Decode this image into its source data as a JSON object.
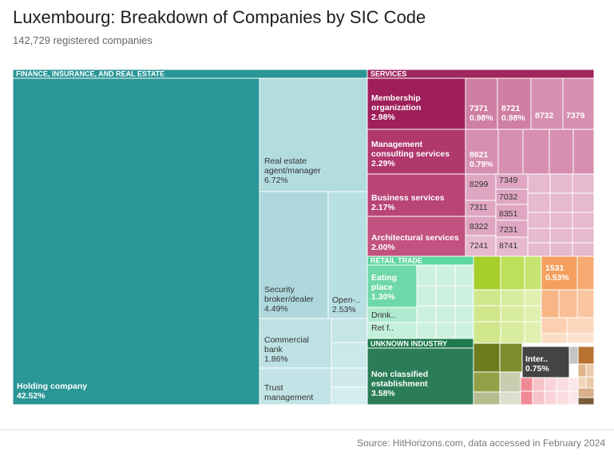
{
  "header": {
    "title": "Luxembourg: Breakdown of Companies by SIC Code",
    "subtitle": "142,729 registered companies"
  },
  "footer": {
    "source": "Source: HitHorizons.com, data accessed in February 2024"
  },
  "chart_data": {
    "type": "treemap",
    "title": "Luxembourg: Breakdown of Companies by SIC Code",
    "subtitle": "142,729 registered companies",
    "sectors": [
      {
        "name": "FINANCE, INSURANCE, AND REAL ESTATE",
        "color": "#2a9696",
        "items": [
          {
            "label": "Holding company",
            "value": "42.52%"
          },
          {
            "label": "Real estate agent/manager",
            "value": "6.72%"
          },
          {
            "label": "Security broker/dealer",
            "value": "4.49%"
          },
          {
            "label": "Open-..",
            "value": "2.53%"
          },
          {
            "label": "Commercial bank",
            "value": "1.86%"
          },
          {
            "label": "Trust management",
            "value": ""
          }
        ]
      },
      {
        "name": "SERVICES",
        "color": "#a0265e",
        "items": [
          {
            "label": "Membership organization",
            "value": "2.98%"
          },
          {
            "label": "Management consulting services",
            "value": "2.29%"
          },
          {
            "label": "Business services",
            "value": "2.17%"
          },
          {
            "label": "Architectural services",
            "value": "2.00%"
          },
          {
            "label": "7371",
            "value": "0.98%"
          },
          {
            "label": "8721",
            "value": "0.98%"
          },
          {
            "label": "8732",
            "value": ""
          },
          {
            "label": "7379",
            "value": ""
          },
          {
            "label": "8621",
            "value": "0.79%"
          },
          {
            "label": "8299",
            "value": ""
          },
          {
            "label": "7349",
            "value": ""
          },
          {
            "label": "7032",
            "value": ""
          },
          {
            "label": "7311",
            "value": ""
          },
          {
            "label": "8351",
            "value": ""
          },
          {
            "label": "8322",
            "value": ""
          },
          {
            "label": "7231",
            "value": ""
          },
          {
            "label": "7241",
            "value": ""
          },
          {
            "label": "8741",
            "value": ""
          }
        ]
      },
      {
        "name": "RETAIL TRADE",
        "color": "#5ed6a0",
        "items": [
          {
            "label": "Eating place",
            "value": "1.30%"
          },
          {
            "label": "Drink..",
            "value": ""
          },
          {
            "label": "Ret f..",
            "value": ""
          }
        ]
      },
      {
        "name": "UNKNOWN INDUSTRY",
        "color": "#1f7a4d",
        "items": [
          {
            "label": "Non classified establishment",
            "value": "3.58%"
          }
        ]
      },
      {
        "name": "",
        "color": "#f5a05f",
        "items": [
          {
            "label": "1531",
            "value": "0.53%"
          }
        ]
      },
      {
        "name": "",
        "color": "#444444",
        "items": [
          {
            "label": "Inter..",
            "value": "0.75%"
          }
        ]
      }
    ]
  }
}
